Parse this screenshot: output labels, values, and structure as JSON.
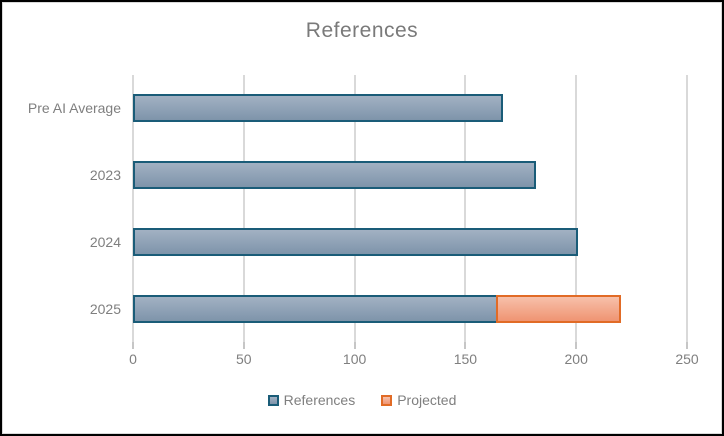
{
  "window": {
    "background": "#ffffff",
    "frame_border": "#000000",
    "inner_border": "#d9d9d9"
  },
  "chart_data": {
    "type": "bar",
    "orientation": "horizontal",
    "stacked": true,
    "title": "References",
    "categories": [
      "Pre AI Average",
      "2023",
      "2024",
      "2025"
    ],
    "series": [
      {
        "name": "References",
        "values": [
          167,
          182,
          201,
          164
        ],
        "fill_top": "#a2b1c3",
        "fill_bottom": "#7e94aa",
        "border": "#1a5c78"
      },
      {
        "name": "Projected",
        "values": [
          0,
          0,
          0,
          56
        ],
        "fill_top": "#f7c0aa",
        "fill_bottom": "#ef9472",
        "border": "#e16b26"
      }
    ],
    "xlim": [
      0,
      250
    ],
    "x_ticks": [
      0,
      50,
      100,
      150,
      200,
      250
    ],
    "grid": true,
    "legend_position": "bottom",
    "colors": {
      "gridline": "#d9d9d9",
      "tick": "#c6c6c6",
      "text": "#7f7f7f",
      "title": "#7a7a7a"
    }
  }
}
